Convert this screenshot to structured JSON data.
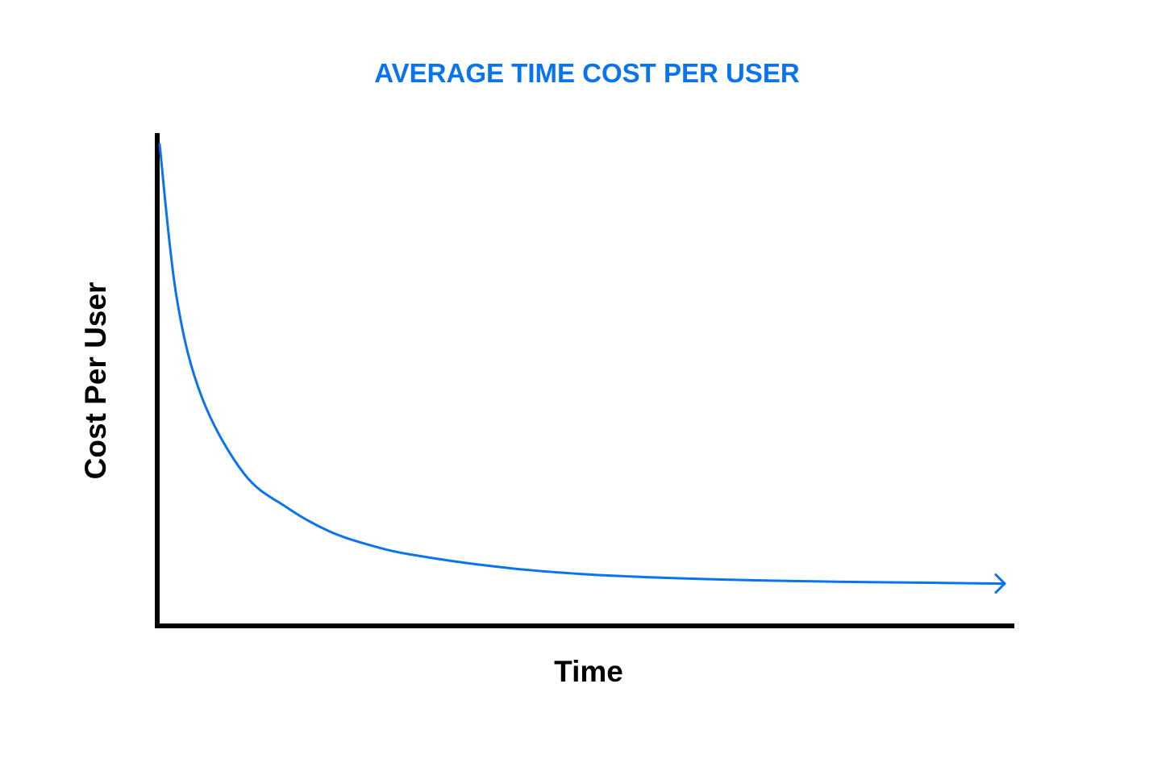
{
  "colors": {
    "accent": "#0A74EE",
    "axis": "#000000",
    "background": "#FFFFFF"
  },
  "chart_data": {
    "type": "line",
    "title": "AVERAGE TIME COST PER USER",
    "xlabel": "Time",
    "ylabel": "Cost Per User",
    "x_ticks_shown": false,
    "y_ticks_shown": false,
    "grid": false,
    "legend": "none",
    "end_marker": "arrow",
    "xlim": [
      0,
      100
    ],
    "ylim": [
      0,
      100
    ],
    "series": [
      {
        "x": [
          0,
          2,
          5,
          10,
          15,
          20,
          25,
          30,
          40,
          50,
          60,
          70,
          80,
          90,
          100
        ],
        "values": [
          99,
          67,
          46,
          30,
          23,
          18,
          15,
          13,
          10.5,
          9,
          8.2,
          7.7,
          7.4,
          7.2,
          7.0
        ]
      }
    ]
  }
}
